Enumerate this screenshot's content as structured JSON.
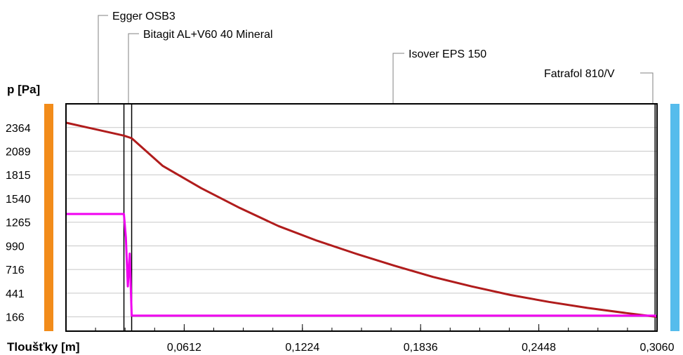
{
  "colors": {
    "left_bar": "#f28c1a",
    "right_bar": "#56bcec",
    "series_pressure": "#b01c1c",
    "series_saturation": "#f000f0",
    "grid": "#c8c8c8",
    "frame": "#000000",
    "leader": "#808080"
  },
  "chart_data": {
    "type": "line",
    "ylabel": "p [Pa]",
    "xlabel": "Tloušťky [m]",
    "xlim": [
      0,
      0.306
    ],
    "ylim": [
      0,
      2639
    ],
    "grid": "horizontal",
    "y_ticks": [
      166,
      441,
      716,
      990,
      1265,
      1540,
      1815,
      2089,
      2364
    ],
    "x_ticks": [
      {
        "value": 0.0612,
        "label": "0,0612"
      },
      {
        "value": 0.1224,
        "label": "0,1224"
      },
      {
        "value": 0.1836,
        "label": "0,1836"
      },
      {
        "value": 0.2448,
        "label": "0,2448"
      },
      {
        "value": 0.306,
        "label": "0,3060"
      }
    ],
    "layers": [
      {
        "name": "Egger OSB3",
        "x_start": 0,
        "x_end": 0.03
      },
      {
        "name": "Bitagit AL+V60 40 Mineral",
        "x_start": 0.03,
        "x_end": 0.034
      },
      {
        "name": "Isover EPS 150",
        "x_start": 0.034,
        "x_end": 0.305
      },
      {
        "name": "Fatrafol 810/V",
        "x_start": 0.305,
        "x_end": 0.306
      }
    ],
    "series": [
      {
        "x": [
          0,
          0.03,
          0.034,
          0.05,
          0.07,
          0.09,
          0.11,
          0.13,
          0.15,
          0.17,
          0.19,
          0.21,
          0.23,
          0.25,
          0.27,
          0.29,
          0.306
        ],
        "values": [
          2420,
          2270,
          2240,
          1920,
          1660,
          1430,
          1220,
          1050,
          900,
          760,
          630,
          520,
          420,
          340,
          270,
          210,
          166
        ]
      },
      {
        "x": [
          0,
          0.03,
          0.031,
          0.032,
          0.033,
          0.034,
          0.305,
          0.306
        ],
        "values": [
          1360,
          1360,
          1090,
          520,
          900,
          180,
          180,
          166
        ]
      }
    ]
  }
}
